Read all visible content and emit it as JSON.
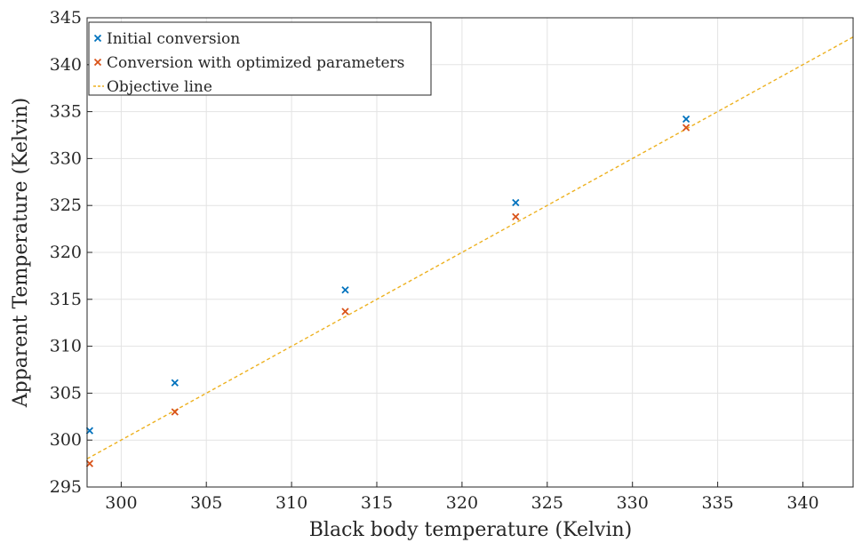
{
  "chart_data": {
    "type": "scatter",
    "title": "",
    "xlabel": "Black body temperature (Kelvin)",
    "ylabel": "Apparent Temperature (Kelvin)",
    "xlim": [
      298,
      343
    ],
    "ylim": [
      295,
      345
    ],
    "xticks": [
      300,
      305,
      310,
      315,
      320,
      325,
      330,
      335,
      340
    ],
    "yticks": [
      295,
      300,
      305,
      310,
      315,
      320,
      325,
      330,
      335,
      340,
      345
    ],
    "grid": true,
    "legend_position": "top-left",
    "series": [
      {
        "name": "Initial conversion",
        "kind": "scatter",
        "marker": "x",
        "color": "#0072BD",
        "x": [
          298.15,
          303.15,
          313.15,
          323.15,
          333.15
        ],
        "y": [
          301.0,
          306.1,
          316.0,
          325.3,
          334.2
        ]
      },
      {
        "name": "Conversion with optimized parameters",
        "kind": "scatter",
        "marker": "x",
        "color": "#D95319",
        "x": [
          298.15,
          303.15,
          313.15,
          323.15,
          333.15
        ],
        "y": [
          297.5,
          303.0,
          313.7,
          323.8,
          333.3
        ]
      },
      {
        "name": "Objective line",
        "kind": "line",
        "style": "dashed",
        "color": "#EDB120",
        "x": [
          298,
          343
        ],
        "y": [
          298,
          343
        ]
      }
    ]
  }
}
